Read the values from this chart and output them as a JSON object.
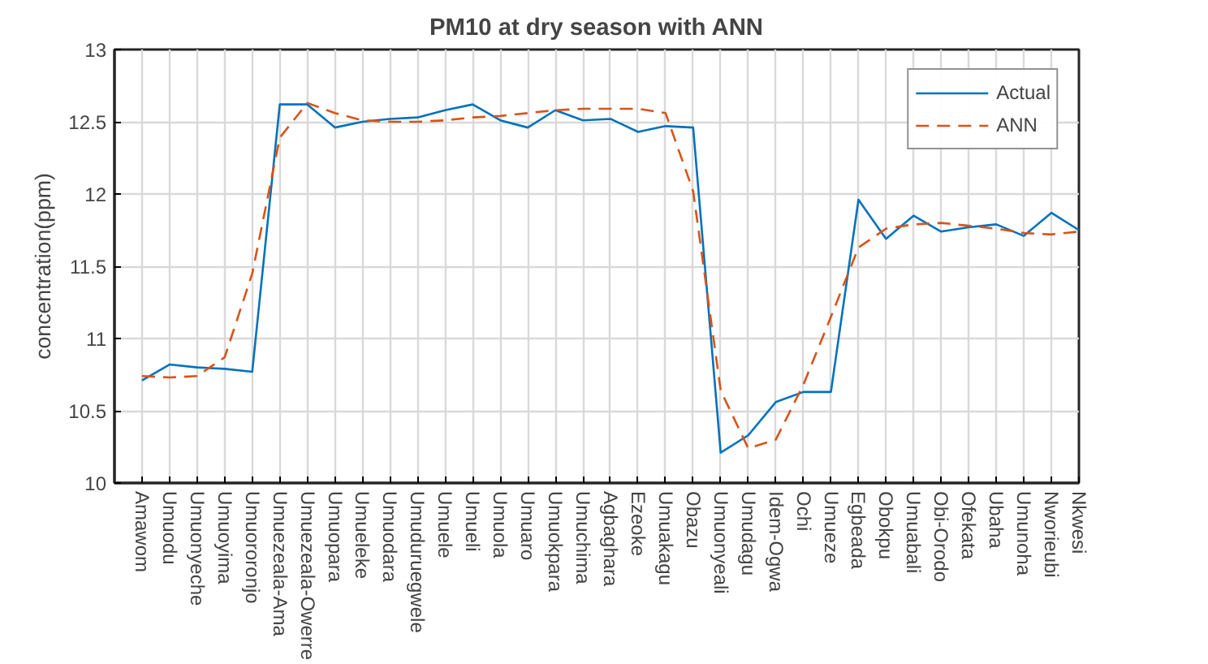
{
  "chart_data": {
    "type": "line",
    "title": "PM10 at dry season with ANN",
    "ylabel": "concentration(ppm)",
    "categories": [
      "Amawom",
      "Umuodu",
      "Umuonyeche",
      "Umuoyima",
      "Umuororonjo",
      "Umuezeala-Ama",
      "Umuezeala-Owerre",
      "Umuopara",
      "Umueleke",
      "Umuodara",
      "Umuduruegwele",
      "Umuele",
      "Umueli",
      "Umuola",
      "Umuaro",
      "Umuokpara",
      "Umuchima",
      "Agbaghara",
      "Ezeoke",
      "Umuakagu",
      "Obazu",
      "Umuonyeali",
      "Umudagu",
      "Idem-Ogwa",
      "Ochi",
      "Umueze",
      "Egbeada",
      "Obokpu",
      "Umuabali",
      "Obi-Orodo",
      "Ofekata",
      "Ubaha",
      "Umunoha",
      "Nworieubi",
      "Nkwesi"
    ],
    "series": [
      {
        "name": "Actual",
        "color": "#0072bd",
        "line_style": "solid",
        "values": [
          10.71,
          10.82,
          10.8,
          10.79,
          10.77,
          12.62,
          12.62,
          12.46,
          12.5,
          12.52,
          12.53,
          12.58,
          12.62,
          12.51,
          12.46,
          12.58,
          12.51,
          12.52,
          12.43,
          12.47,
          12.46,
          10.21,
          10.33,
          10.56,
          10.63,
          10.63,
          11.96,
          11.69,
          11.85,
          11.74,
          11.77,
          11.79,
          11.71,
          11.87,
          11.75
        ]
      },
      {
        "name": "ANN",
        "color": "#d95319",
        "line_style": "dashed",
        "values": [
          10.74,
          10.73,
          10.74,
          10.87,
          11.45,
          12.39,
          12.63,
          12.56,
          12.51,
          12.5,
          12.5,
          12.51,
          12.53,
          12.54,
          12.56,
          12.58,
          12.59,
          12.59,
          12.59,
          12.56,
          12.02,
          10.64,
          10.24,
          10.3,
          10.68,
          11.15,
          11.63,
          11.76,
          11.79,
          11.8,
          11.78,
          11.76,
          11.73,
          11.72,
          11.74
        ]
      }
    ],
    "ylim": [
      10,
      13
    ],
    "yticks": [
      10,
      10.5,
      11,
      11.5,
      12,
      12.5,
      13
    ],
    "grid": true,
    "legend": "top right"
  }
}
